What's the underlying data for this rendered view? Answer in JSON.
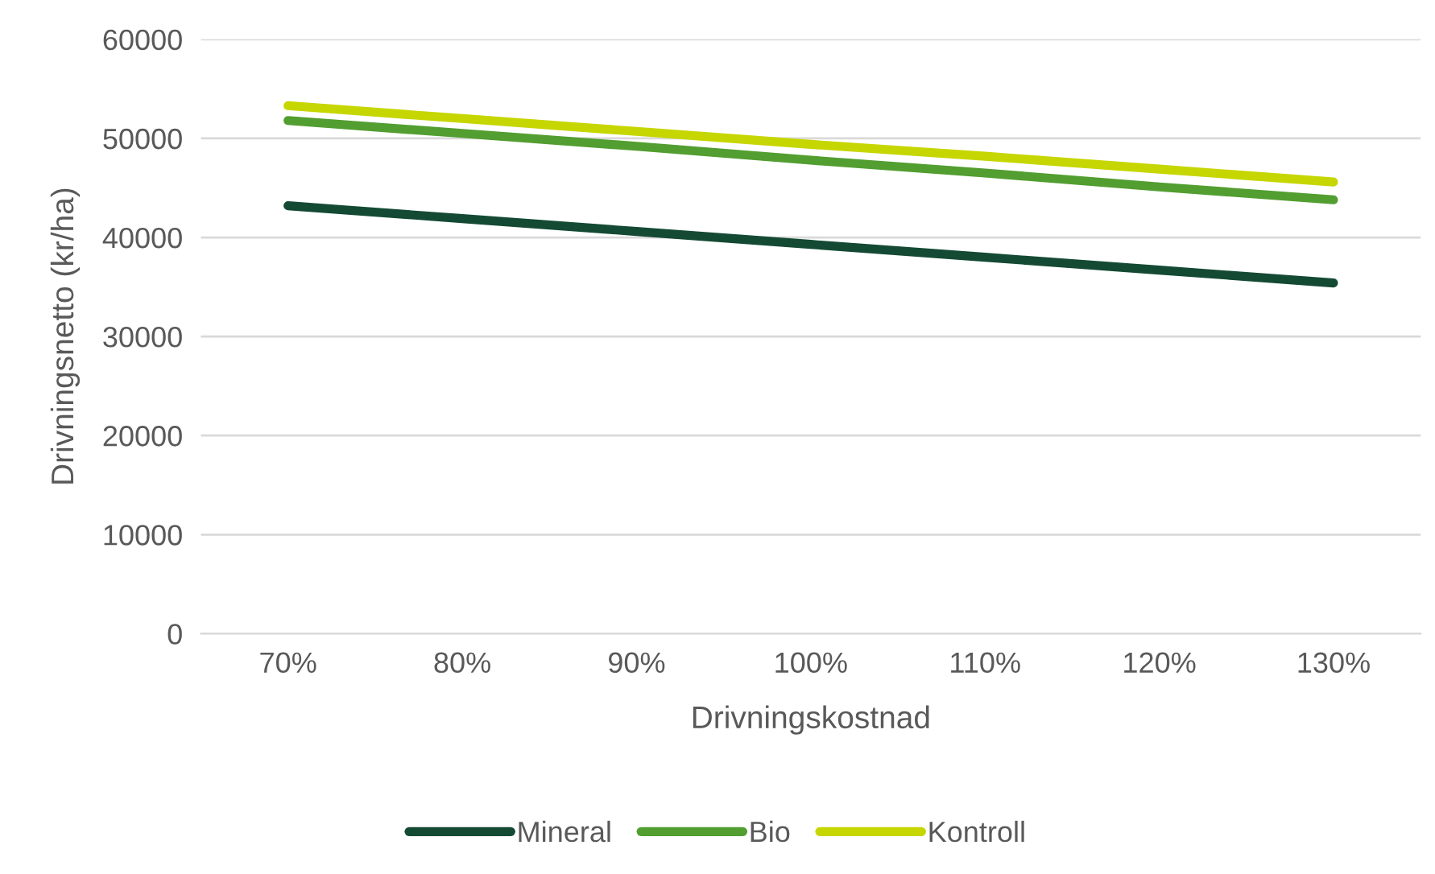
{
  "chart_data": {
    "type": "line",
    "xlabel": "Drivningskostnad",
    "ylabel": "Drivningsnetto (kr/ha)",
    "categories": [
      "70%",
      "80%",
      "90%",
      "100%",
      "110%",
      "120%",
      "130%"
    ],
    "series": [
      {
        "name": "Mineral",
        "color": "#144a33",
        "values": [
          43200,
          41900,
          40600,
          39300,
          38000,
          36700,
          35400
        ]
      },
      {
        "name": "Bio",
        "color": "#529e30",
        "values": [
          51800,
          50500,
          49200,
          47800,
          46500,
          45100,
          43800
        ]
      },
      {
        "name": "Kontroll",
        "color": "#c6d600",
        "values": [
          53300,
          52000,
          50700,
          49400,
          48200,
          46900,
          45600
        ]
      }
    ],
    "ylim": [
      0,
      60000
    ],
    "yticks": [
      0,
      10000,
      20000,
      30000,
      40000,
      50000,
      60000
    ],
    "grid": "y",
    "legend": "bottom",
    "marker": "none",
    "line_style": "solid"
  }
}
